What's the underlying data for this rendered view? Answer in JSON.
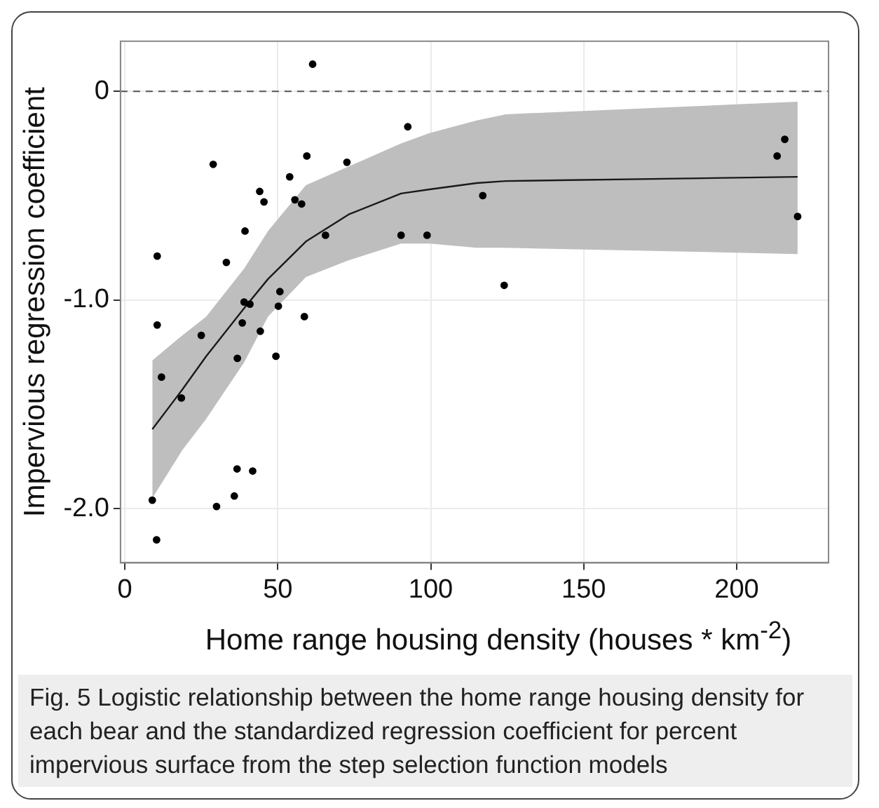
{
  "chart_data": {
    "type": "scatter",
    "xlabel": "Home range housing density (houses * km$^{-2}$)",
    "ylabel": "Impervious regression coefficient",
    "annotations": [
      "Fig. 5 Logistic relationship between the home range housing density for each bear and the standardized regression coefficient for percent impervious surface from the step selection function models"
    ],
    "xlim": [
      -1.4,
      230
    ],
    "xticks": [
      0,
      50,
      100,
      150,
      200
    ],
    "ylim": [
      -2.26,
      0.24
    ],
    "yticks": [
      {
        "value": 0,
        "label": "0"
      },
      {
        "value": -1,
        "label": "-1.0"
      },
      {
        "value": -2,
        "label": "-2.0"
      }
    ],
    "grid": true,
    "legend": false,
    "ref_lines": [
      {
        "axis": "y",
        "value": 0,
        "color": "#555555",
        "line_style": "dashed"
      }
    ],
    "series": [
      {
        "color": "#000000",
        "marker": "circle",
        "x": [
          61.4,
          92.5,
          28.9,
          59.5,
          72.6,
          53.9,
          44.1,
          45.5,
          55.6,
          57.8,
          39.3,
          65.6,
          90.3,
          98.8,
          10.6,
          33.2,
          39.0,
          40.9,
          50.7,
          50.2,
          58.7,
          10.6,
          38.4,
          25.0,
          44.3,
          36.8,
          49.4,
          12.0,
          18.5,
          36.7,
          41.8,
          9.0,
          30.0,
          35.8,
          10.4,
          117.0,
          124.0,
          213.2,
          215.7,
          219.9
        ],
        "values": [
          0.13,
          -0.17,
          -0.35,
          -0.31,
          -0.34,
          -0.41,
          -0.48,
          -0.53,
          -0.52,
          -0.54,
          -0.67,
          -0.69,
          -0.69,
          -0.69,
          -0.79,
          -0.82,
          -1.01,
          -1.02,
          -0.96,
          -1.03,
          -1.08,
          -1.12,
          -1.11,
          -1.17,
          -1.15,
          -1.28,
          -1.27,
          -1.37,
          -1.47,
          -1.81,
          -1.82,
          -1.96,
          -1.99,
          -1.94,
          -2.15,
          -0.5,
          -0.93,
          -0.31,
          -0.23,
          -0.6
        ]
      },
      {
        "type": "line",
        "color": "#1a1a1a",
        "marker": "none",
        "x": [
          9,
          18.8,
          26.6,
          39,
          46.8,
          59.2,
          73.2,
          90.3,
          99.6,
          115,
          124.5,
          219.9
        ],
        "values": [
          -1.62,
          -1.43,
          -1.27,
          -1.04,
          -0.9,
          -0.72,
          -0.59,
          -0.49,
          -0.47,
          -0.44,
          -0.43,
          -0.41
        ],
        "lower": [
          -1.95,
          -1.72,
          -1.57,
          -1.3,
          -1.08,
          -0.89,
          -0.81,
          -0.73,
          -0.73,
          -0.75,
          -0.75,
          -0.78
        ],
        "upper": [
          -1.29,
          -1.17,
          -1.08,
          -0.85,
          -0.67,
          -0.45,
          -0.36,
          -0.25,
          -0.2,
          -0.14,
          -0.11,
          -0.05
        ]
      }
    ]
  }
}
